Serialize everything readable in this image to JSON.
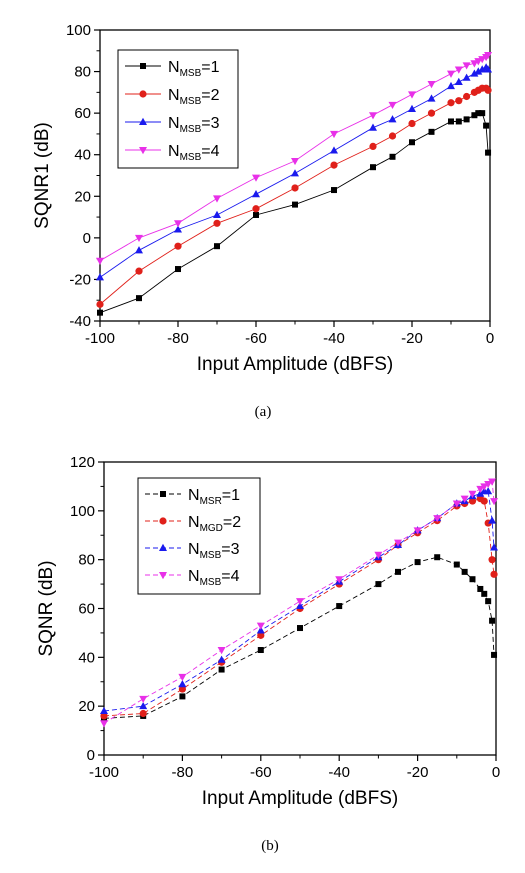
{
  "chart_data": [
    {
      "type": "line",
      "caption": "(a)",
      "xlabel": "Input Amplitude (dBFS)",
      "ylabel": "SQNR1 (dB)",
      "xlim": [
        -100,
        0
      ],
      "ylim": [
        -40,
        100
      ],
      "xticks": [
        -100,
        -80,
        -60,
        -40,
        -20,
        0
      ],
      "yticks": [
        -40,
        -20,
        0,
        20,
        40,
        60,
        80,
        100
      ],
      "legend_position": "top-left",
      "grid": false,
      "series": [
        {
          "name": "NMSB=1",
          "label_main": "N",
          "label_sub": "MSB",
          "label_tail": "=1",
          "color": "#000000",
          "marker": "square",
          "x": [
            -100,
            -90,
            -80,
            -70,
            -60,
            -50,
            -40,
            -30,
            -25,
            -20,
            -15,
            -10,
            -8,
            -6,
            -4,
            -3,
            -2,
            -1,
            -0.5
          ],
          "y": [
            -36,
            -29,
            -15,
            -4,
            11,
            16,
            23,
            34,
            39,
            46,
            51,
            56,
            56,
            57,
            59,
            60,
            60,
            54,
            41
          ]
        },
        {
          "name": "NMSB=2",
          "label_main": "N",
          "label_sub": "MSB",
          "label_tail": "=2",
          "color": "#e0201a",
          "marker": "circle",
          "x": [
            -100,
            -90,
            -80,
            -70,
            -60,
            -50,
            -40,
            -30,
            -25,
            -20,
            -15,
            -10,
            -8,
            -6,
            -4,
            -3,
            -2,
            -1,
            -0.5
          ],
          "y": [
            -32,
            -16,
            -4,
            7,
            14,
            24,
            35,
            44,
            49,
            55,
            60,
            65,
            66,
            68,
            70,
            71,
            72,
            72,
            71
          ]
        },
        {
          "name": "NMSB=3",
          "label_main": "N",
          "label_sub": "MSB",
          "label_tail": "=3",
          "color": "#1a1aee",
          "marker": "triangle-up",
          "x": [
            -100,
            -90,
            -80,
            -70,
            -60,
            -50,
            -40,
            -30,
            -25,
            -20,
            -15,
            -10,
            -8,
            -6,
            -4,
            -3,
            -2,
            -1,
            -0.5
          ],
          "y": [
            -19,
            -6,
            4,
            11,
            21,
            31,
            42,
            53,
            57,
            62,
            67,
            73,
            75,
            77,
            79,
            80,
            81,
            82,
            81
          ]
        },
        {
          "name": "NMSB=4",
          "label_main": "N",
          "label_sub": "MSB",
          "label_tail": "=4",
          "color": "#e830e8",
          "marker": "triangle-down",
          "x": [
            -100,
            -90,
            -80,
            -70,
            -60,
            -50,
            -40,
            -30,
            -25,
            -20,
            -15,
            -10,
            -8,
            -6,
            -4,
            -3,
            -2,
            -1,
            -0.5
          ],
          "y": [
            -11,
            0,
            7,
            19,
            29,
            37,
            50,
            59,
            64,
            69,
            74,
            79,
            81,
            83,
            84,
            85,
            86,
            87,
            88
          ]
        }
      ]
    },
    {
      "type": "line",
      "caption": "(b)",
      "xlabel": "Input Amplitude (dBFS)",
      "ylabel": "SQNR (dB)",
      "xlim": [
        -100,
        0
      ],
      "ylim": [
        0,
        120
      ],
      "xticks": [
        -100,
        -80,
        -60,
        -40,
        -20,
        0
      ],
      "yticks": [
        0,
        20,
        40,
        60,
        80,
        100,
        120
      ],
      "legend_position": "top-left",
      "grid": false,
      "series": [
        {
          "name": "NMSR=1",
          "label_main": "N",
          "label_sub": "MSR",
          "label_tail": "=1",
          "color": "#000000",
          "marker": "square",
          "x": [
            -100,
            -90,
            -80,
            -70,
            -60,
            -50,
            -40,
            -30,
            -25,
            -20,
            -15,
            -10,
            -8,
            -6,
            -4,
            -3,
            -2,
            -1,
            -0.5
          ],
          "y": [
            15,
            16,
            24,
            35,
            43,
            52,
            61,
            70,
            75,
            79,
            81,
            78,
            75,
            72,
            68,
            66,
            63,
            55,
            41
          ]
        },
        {
          "name": "NMGD=2",
          "label_main": "N",
          "label_sub": "MGD",
          "label_tail": "=2",
          "color": "#e0201a",
          "marker": "circle",
          "x": [
            -100,
            -90,
            -80,
            -70,
            -60,
            -50,
            -40,
            -30,
            -25,
            -20,
            -15,
            -10,
            -8,
            -6,
            -4,
            -3,
            -2,
            -1,
            -0.5
          ],
          "y": [
            16,
            17,
            27,
            38,
            49,
            60,
            70,
            80,
            86,
            91,
            96,
            102,
            103,
            104,
            105,
            104,
            95,
            80,
            74
          ]
        },
        {
          "name": "NMSB=3",
          "label_main": "N",
          "label_sub": "MSB",
          "label_tail": "=3",
          "color": "#1a1aee",
          "marker": "triangle-up",
          "x": [
            -100,
            -90,
            -80,
            -70,
            -60,
            -50,
            -40,
            -30,
            -25,
            -20,
            -15,
            -10,
            -8,
            -6,
            -4,
            -3,
            -2,
            -1,
            -0.5
          ],
          "y": [
            18,
            20,
            29,
            39,
            51,
            61,
            71,
            81,
            86,
            92,
            97,
            103,
            104,
            106,
            107,
            108,
            108,
            96,
            85
          ]
        },
        {
          "name": "NMSB=4",
          "label_main": "N",
          "label_sub": "MSB",
          "label_tail": "=4",
          "color": "#e830e8",
          "marker": "triangle-down",
          "x": [
            -100,
            -90,
            -80,
            -70,
            -60,
            -50,
            -40,
            -30,
            -25,
            -20,
            -15,
            -10,
            -8,
            -6,
            -4,
            -3,
            -2,
            -1,
            -0.5
          ],
          "y": [
            13,
            23,
            32,
            43,
            53,
            63,
            72,
            82,
            87,
            92,
            97,
            103,
            105,
            107,
            109,
            110,
            111,
            112,
            104
          ]
        }
      ]
    }
  ]
}
